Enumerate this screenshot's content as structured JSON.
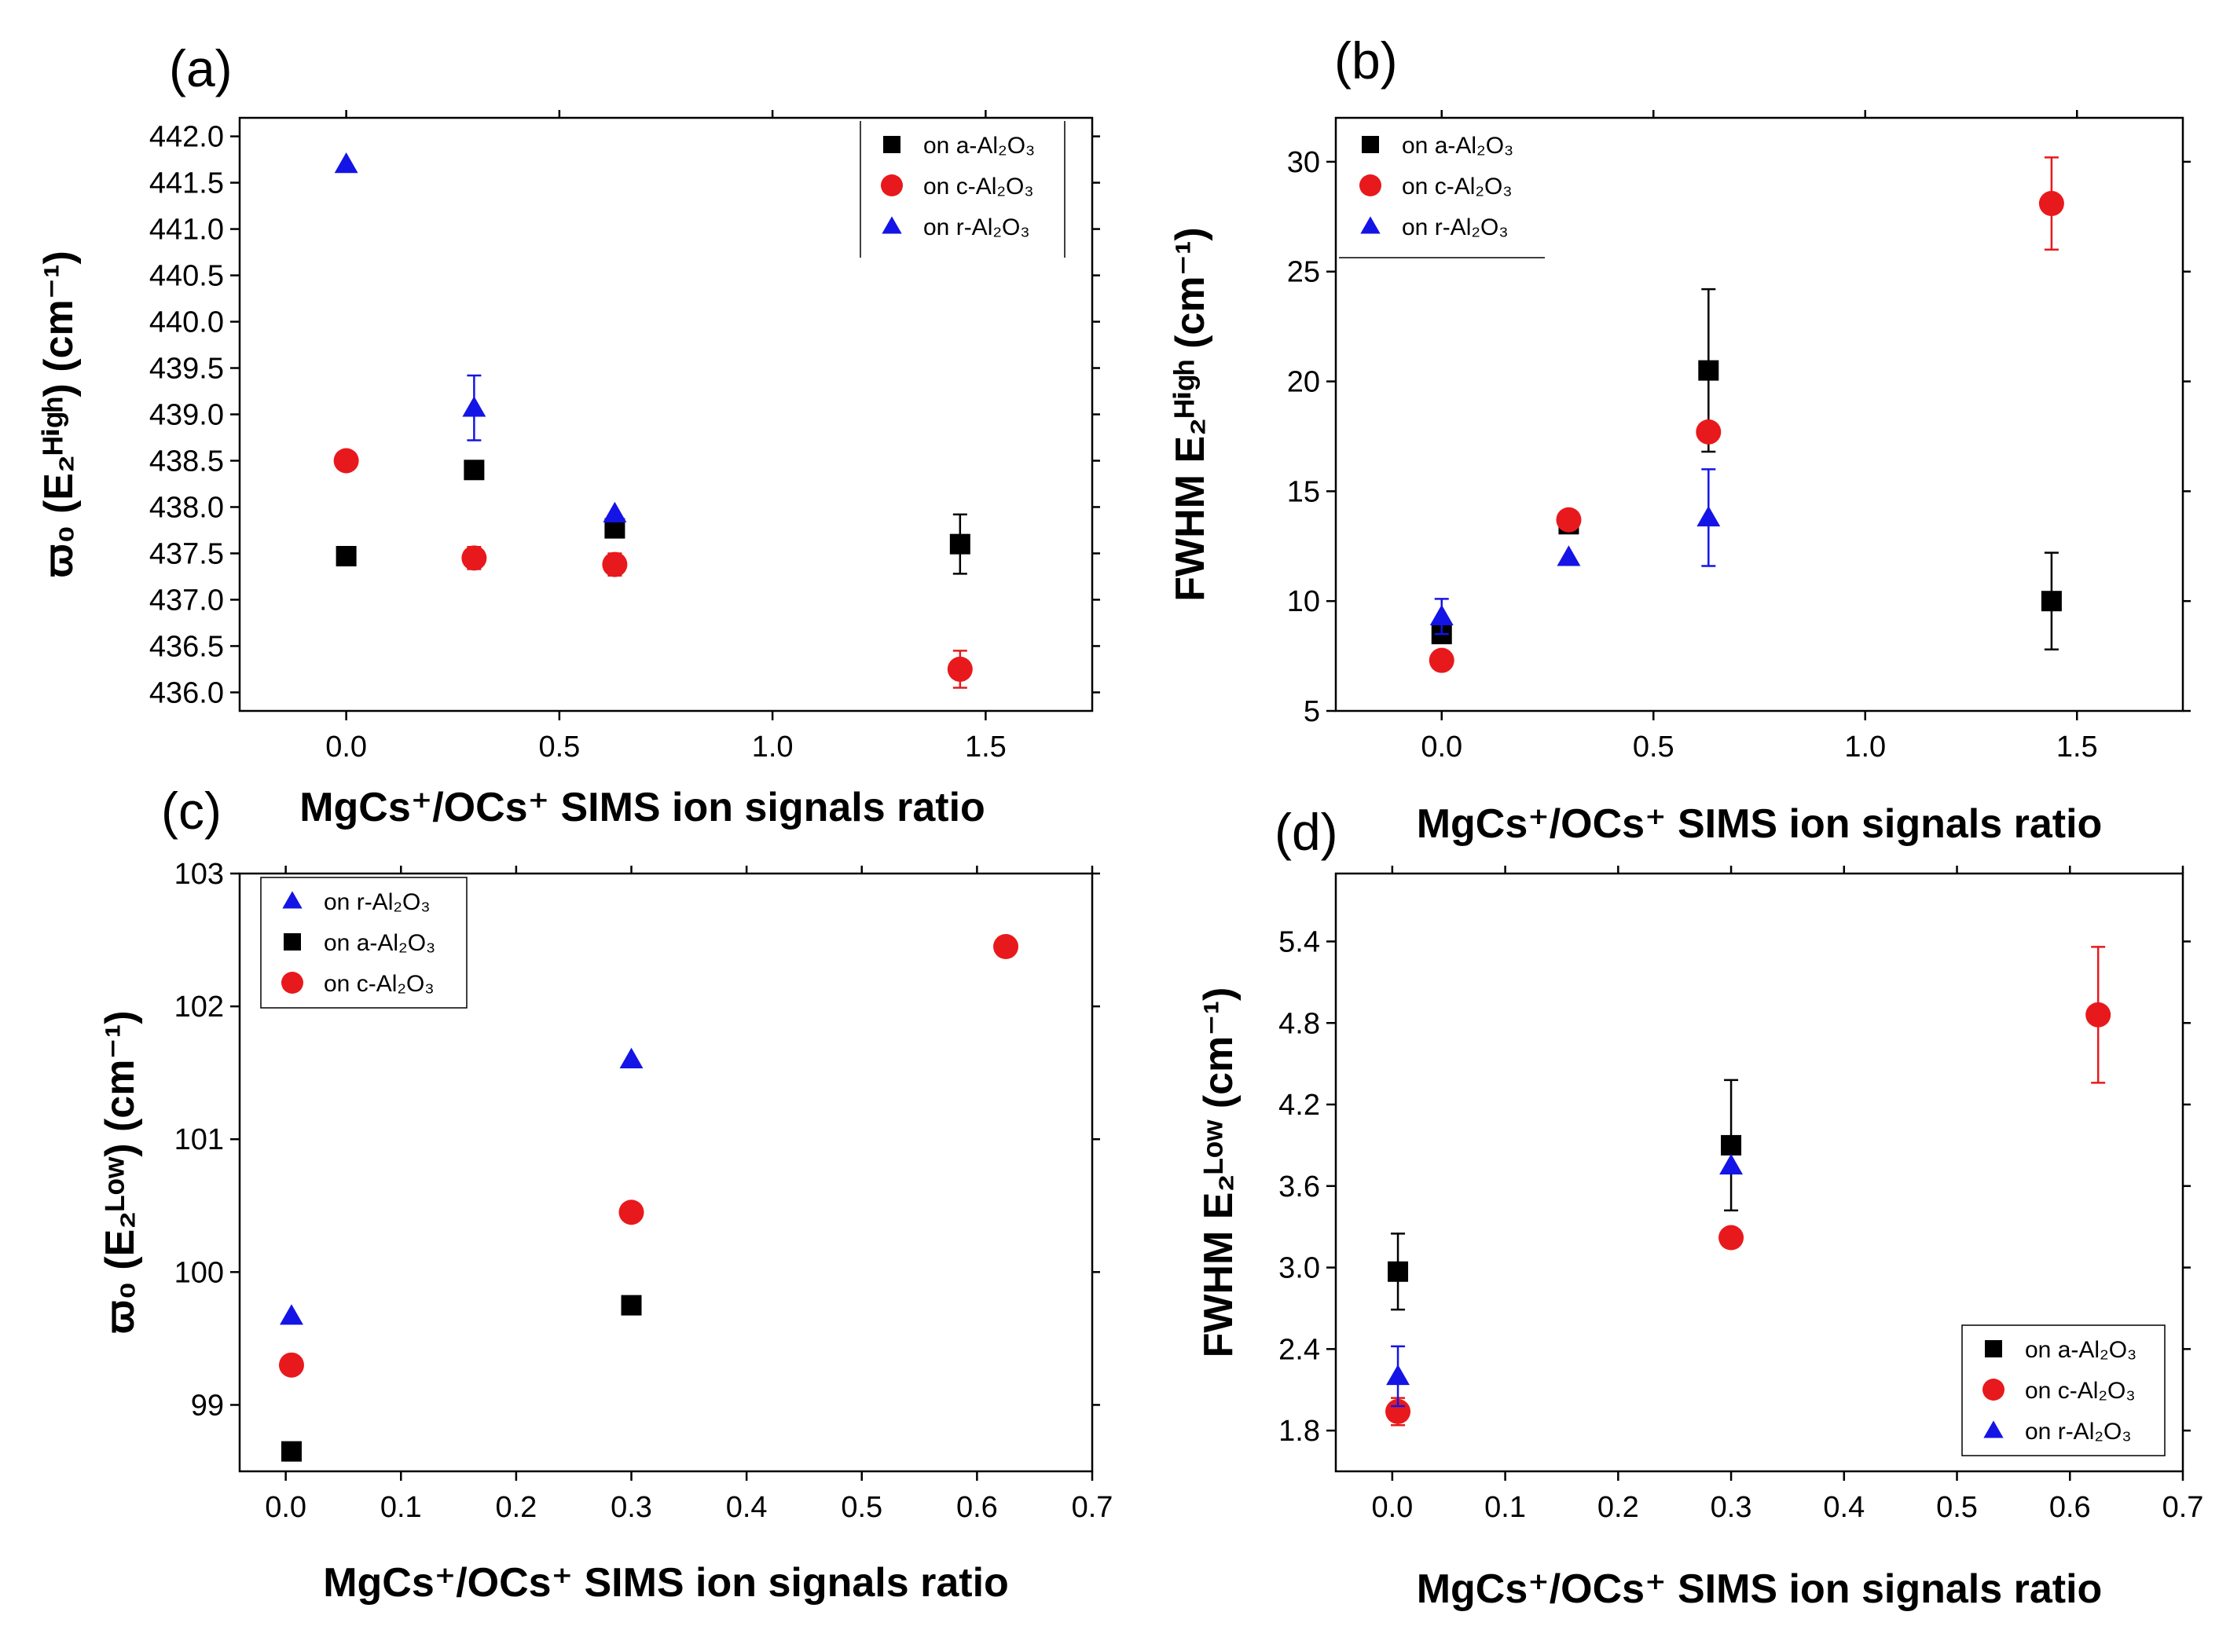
{
  "colors": {
    "a": "#000000",
    "c": "#e8191c",
    "r": "#1414e6"
  },
  "chart_data": [
    {
      "panel": "(a)",
      "type": "scatter",
      "xlabel": "MgCs⁺/OCs⁺ SIMS ion signals ratio",
      "ylabel": "ϖ₀ (E₂ᴴⁱᵍʰ) (cm⁻¹)",
      "xlim": [
        -0.25,
        1.75
      ],
      "ylim": [
        435.8,
        442.2
      ],
      "xticks": [
        "0.0",
        "0.5",
        "1.0",
        "1.5"
      ],
      "yticks": [
        "436.0",
        "436.5",
        "437.0",
        "437.5",
        "438.0",
        "438.5",
        "439.0",
        "439.5",
        "440.0",
        "440.5",
        "441.0",
        "441.5",
        "442.0"
      ],
      "legend_position": "top-right",
      "legend": [
        "on a-Al₂O₃",
        "on c-Al₂O₃",
        "on r-Al₂O₃"
      ],
      "series": [
        {
          "name": "on a-Al₂O₃",
          "marker": "square",
          "x": [
            0.0,
            0.3,
            0.63,
            1.44
          ],
          "y": [
            437.47,
            438.4,
            437.77,
            437.6
          ],
          "err": [
            0,
            0,
            0,
            0.32
          ]
        },
        {
          "name": "on c-Al₂O₃",
          "marker": "circle",
          "x": [
            0.0,
            0.3,
            0.63,
            1.44
          ],
          "y": [
            438.5,
            437.45,
            437.38,
            436.25
          ],
          "err": [
            0,
            0.12,
            0.12,
            0.2
          ]
        },
        {
          "name": "on r-Al₂O₃",
          "marker": "triangle",
          "x": [
            0.0,
            0.3,
            0.63
          ],
          "y": [
            441.7,
            439.07,
            437.93
          ],
          "err": [
            0,
            0.35,
            0
          ]
        }
      ]
    },
    {
      "panel": "(b)",
      "type": "scatter",
      "xlabel": "MgCs⁺/OCs⁺ SIMS ion signals ratio",
      "ylabel": "FWHM E₂ᴴⁱᵍʰ (cm⁻¹)",
      "xlim": [
        -0.25,
        1.75
      ],
      "ylim": [
        5,
        32
      ],
      "xticks": [
        "0.0",
        "0.5",
        "1.0",
        "1.5"
      ],
      "yticks": [
        "5",
        "10",
        "15",
        "20",
        "25",
        "30"
      ],
      "legend_position": "top-left",
      "legend": [
        "on a-Al₂O₃",
        "on c-Al₂O₃",
        "on r-Al₂O₃"
      ],
      "series": [
        {
          "name": "on a-Al₂O₃",
          "marker": "square",
          "x": [
            0.0,
            0.3,
            0.63,
            1.44
          ],
          "y": [
            8.5,
            13.5,
            20.5,
            10.0
          ],
          "err": [
            0,
            0,
            3.7,
            2.2
          ]
        },
        {
          "name": "on c-Al₂O₃",
          "marker": "circle",
          "x": [
            0.0,
            0.3,
            0.63,
            1.44
          ],
          "y": [
            7.3,
            13.7,
            17.7,
            28.1
          ],
          "err": [
            0,
            0,
            0,
            2.1
          ]
        },
        {
          "name": "on r-Al₂O₃",
          "marker": "triangle",
          "x": [
            0.0,
            0.3,
            0.63
          ],
          "y": [
            9.3,
            12.0,
            13.8
          ],
          "err": [
            0.8,
            0,
            2.2
          ]
        }
      ]
    },
    {
      "panel": "(c)",
      "type": "scatter",
      "xlabel": "MgCs⁺/OCs⁺ SIMS ion signals ratio",
      "ylabel": "ϖ₀ (E₂ᴸᵒʷ) (cm⁻¹)",
      "xlim": [
        -0.04,
        0.7
      ],
      "ylim": [
        98.5,
        103
      ],
      "xticks": [
        "0.0",
        "0.1",
        "0.2",
        "0.3",
        "0.4",
        "0.5",
        "0.6",
        "0.7"
      ],
      "yticks": [
        "99",
        "100",
        "101",
        "102",
        "103"
      ],
      "legend_position": "top-left",
      "legend": [
        "on r-Al₂O₃",
        "on a-Al₂O₃",
        "on c-Al₂O₃"
      ],
      "series": [
        {
          "name": "on r-Al₂O₃",
          "marker": "triangle",
          "x": [
            0.005,
            0.3
          ],
          "y": [
            99.67,
            101.6
          ],
          "err": [
            0,
            0
          ]
        },
        {
          "name": "on a-Al₂O₃",
          "marker": "square",
          "x": [
            0.005,
            0.3
          ],
          "y": [
            98.65,
            99.75
          ],
          "err": [
            0,
            0
          ]
        },
        {
          "name": "on c-Al₂O₃",
          "marker": "circle",
          "x": [
            0.005,
            0.3,
            0.625
          ],
          "y": [
            99.3,
            100.45,
            102.45
          ],
          "err": [
            0,
            0,
            0
          ]
        }
      ]
    },
    {
      "panel": "(d)",
      "type": "scatter",
      "xlabel": "MgCs⁺/OCs⁺ SIMS ion signals ratio",
      "ylabel": "FWHM E₂ᴸᵒʷ (cm⁻¹)",
      "xlim": [
        -0.05,
        0.7
      ],
      "ylim": [
        1.5,
        5.9
      ],
      "xticks": [
        "0.0",
        "0.1",
        "0.2",
        "0.3",
        "0.4",
        "0.5",
        "0.6",
        "0.7"
      ],
      "yticks": [
        "1.8",
        "2.4",
        "3.0",
        "3.6",
        "4.2",
        "4.8",
        "5.4"
      ],
      "legend_position": "bottom-right",
      "legend": [
        "on a-Al₂O₃",
        "on c-Al₂O₃",
        "on r-Al₂O₃"
      ],
      "series": [
        {
          "name": "on a-Al₂O₃",
          "marker": "square",
          "x": [
            0.005,
            0.3
          ],
          "y": [
            2.97,
            3.9
          ],
          "err": [
            0.28,
            0.48
          ]
        },
        {
          "name": "on c-Al₂O₃",
          "marker": "circle",
          "x": [
            0.005,
            0.3,
            0.625
          ],
          "y": [
            1.94,
            3.22,
            4.86
          ],
          "err": [
            0.1,
            0,
            0.5
          ]
        },
        {
          "name": "on r-Al₂O₃",
          "marker": "triangle",
          "x": [
            0.005,
            0.3
          ],
          "y": [
            2.2,
            3.75
          ],
          "err": [
            0.22,
            0
          ]
        }
      ]
    }
  ]
}
